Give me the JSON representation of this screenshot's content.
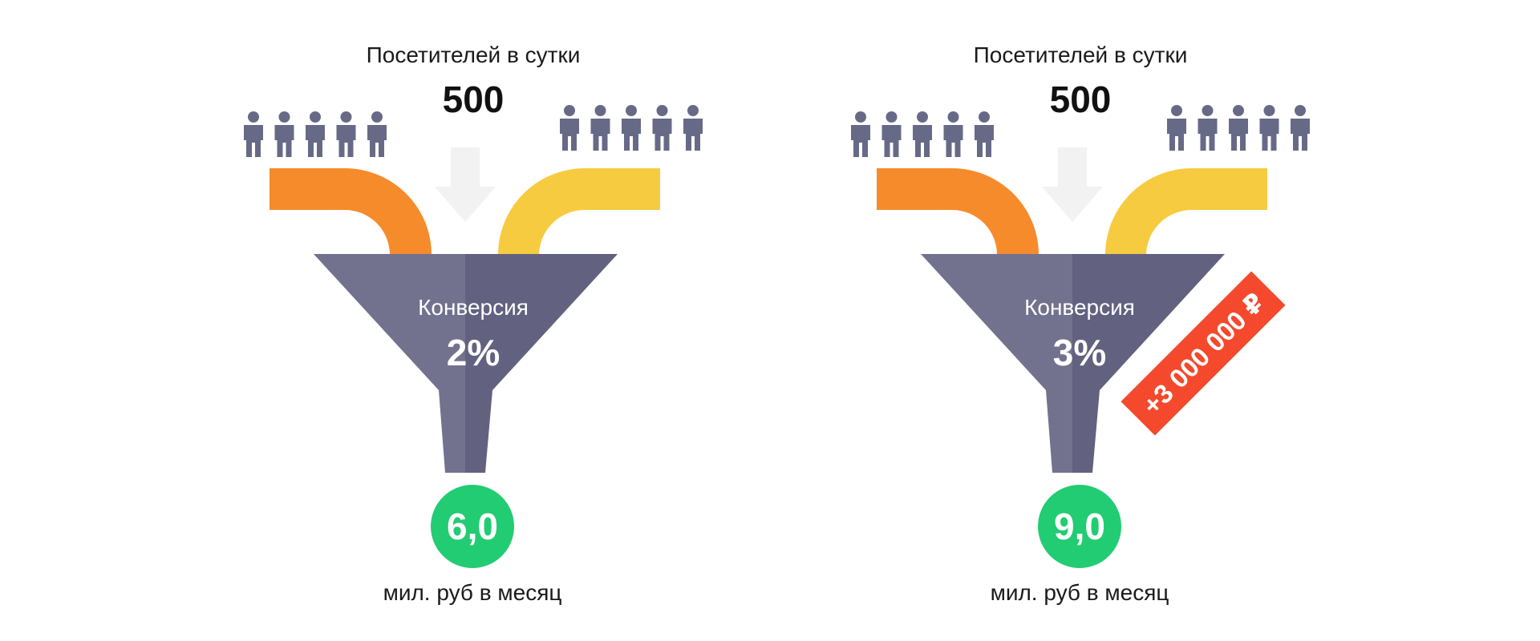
{
  "colors": {
    "background": "#ffffff",
    "person": "#676a87",
    "pipe_left": "#f68b2c",
    "pipe_right": "#f7cb40",
    "arrow": "#f2f2f2",
    "funnel_light": "#72728f",
    "funnel_dark": "#626180",
    "result_circle": "#22cc72",
    "badge": "#f4492d",
    "text_dark": "#1a1a1a",
    "text_black": "#111111",
    "text_white": "#ffffff"
  },
  "icons": {
    "person": "person-icon",
    "arrow": "arrow-down-icon"
  },
  "funnels": [
    {
      "header_label": "Посетителей в сутки",
      "visitors_value": "500",
      "people_left_count": 5,
      "people_right_count": 5,
      "conversion_label": "Конверсия",
      "conversion_value": "2%",
      "result_value": "6,0",
      "result_caption": "мил. руб в месяц"
    },
    {
      "header_label": "Посетителей в сутки",
      "visitors_value": "500",
      "people_left_count": 5,
      "people_right_count": 5,
      "conversion_label": "Конверсия",
      "conversion_value": "3%",
      "result_value": "9,0",
      "result_caption": "мил. руб в месяц",
      "badge_text": "+3 000 000 ₽"
    }
  ]
}
